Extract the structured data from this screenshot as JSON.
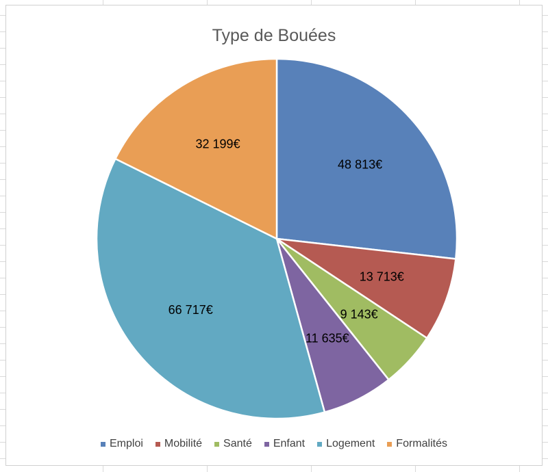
{
  "chart_data": {
    "type": "pie",
    "title": "Type de Bouées",
    "categories": [
      "Emploi",
      "Mobilité",
      "Santé",
      "Enfant",
      "Logement",
      "Formalités"
    ],
    "values": [
      48813,
      13713,
      9143,
      11635,
      66717,
      32199
    ],
    "data_labels": [
      "48 813€",
      "13 713€",
      "9 143€",
      "11 635€",
      "66 717€",
      "32 199€"
    ],
    "colors": [
      "#5881b9",
      "#b55a52",
      "#a0bc62",
      "#7e65a1",
      "#62a9c2",
      "#e99e55"
    ],
    "legend_position": "bottom",
    "start_angle_deg": 0,
    "direction": "clockwise"
  }
}
